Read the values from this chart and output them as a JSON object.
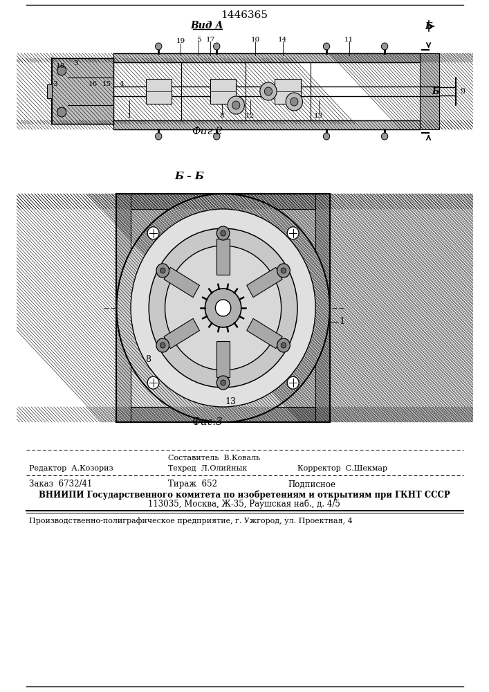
{
  "patent_number": "1446365",
  "title_view_a": "Вид А",
  "title_fig2": "Фиг.2",
  "title_fig3": "Фиг.3",
  "section_label": "Б - Б",
  "editor_line": "Редактор  А.Козориз",
  "composer_line": "Составитель  В.Коваль",
  "techred_line": "Техред  Л.Олийнык",
  "corrector_line": "Корректор  С.Шекмар",
  "order_line": "Заказ  6732/41",
  "tirazh_line": "Тираж  652",
  "podpisnoe_line": "Подписное",
  "vniip_line": "ВНИИПИ Государственного комитета по изобретениям и открытиям при ГКНТ СССР",
  "vniip_addr": "113035, Москва, Ж-35, Раушская наб., д. 4/5",
  "prod_line": "Производственно-полиграфическое предприятие, г. Ужгород, ул. Проектная, 4",
  "bg_color": "#ffffff"
}
